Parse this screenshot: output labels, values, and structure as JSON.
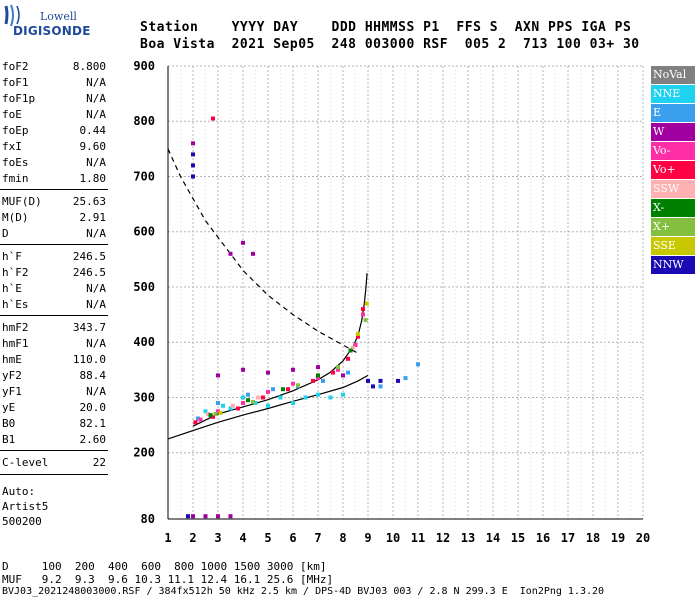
{
  "logo": {
    "brand": "Lowell",
    "name": "DIGISONDE"
  },
  "header": {
    "line1": "Station    YYYY DAY    DDD HHMMSS P1  FFS S  AXN PPS IGA PS",
    "line2": "Boa Vista  2021 Sep05  248 003000 RSF  005 2  713 100 03+ 30"
  },
  "params": [
    {
      "name": "foF2",
      "value": "8.800"
    },
    {
      "name": "foF1",
      "value": "N/A"
    },
    {
      "name": "foF1p",
      "value": "N/A"
    },
    {
      "name": "foE",
      "value": "N/A"
    },
    {
      "name": "foEp",
      "value": "0.44"
    },
    {
      "name": "fxI",
      "value": "9.60"
    },
    {
      "name": "foEs",
      "value": "N/A"
    },
    {
      "name": "fmin",
      "value": "1.80"
    },
    {
      "name": "MUF(D)",
      "value": "25.63"
    },
    {
      "name": "M(D)",
      "value": "2.91"
    },
    {
      "name": "D",
      "value": "N/A"
    },
    {
      "name": "h`F",
      "value": "246.5"
    },
    {
      "name": "h`F2",
      "value": "246.5"
    },
    {
      "name": "h`E",
      "value": "N/A"
    },
    {
      "name": "h`Es",
      "value": "N/A"
    },
    {
      "name": "hmF2",
      "value": "343.7"
    },
    {
      "name": "hmF1",
      "value": "N/A"
    },
    {
      "name": "hmE",
      "value": "110.0"
    },
    {
      "name": "yF2",
      "value": "88.4"
    },
    {
      "name": "yF1",
      "value": "N/A"
    },
    {
      "name": "yE",
      "value": "20.0"
    },
    {
      "name": "B0",
      "value": "82.1"
    },
    {
      "name": "B1",
      "value": "2.60"
    },
    {
      "name": "C-level",
      "value": "22"
    }
  ],
  "auto": {
    "line1": "Auto:",
    "line2": "Artist5",
    "line3": "500200"
  },
  "footer": {
    "d_row": "D     100  200  400  600  800 1000 1500 3000 [km]",
    "muf_row": "MUF   9.2  9.3  9.6 10.3 11.1 12.4 16.1 25.6 [MHz]",
    "file_row": "BVJ03_2021248003000.RSF / 384fx512h 50 kHz 2.5 km / DPS-4D BVJ03 003 / 2.8 N 299.3 E  Ion2Png 1.3.20"
  },
  "legend": [
    {
      "label": "NoVal",
      "color": "#808080"
    },
    {
      "label": "NNE",
      "color": "#1ed2f0"
    },
    {
      "label": "E",
      "color": "#3aa0ee"
    },
    {
      "label": "W",
      "color": "#a000a0"
    },
    {
      "label": "Vo-",
      "color": "#ff2ea6"
    },
    {
      "label": "Vo+",
      "color": "#ff0044"
    },
    {
      "label": "SSW",
      "color": "#ffb0b0"
    },
    {
      "label": "X-",
      "color": "#008000"
    },
    {
      "label": "X+",
      "color": "#84c040"
    },
    {
      "label": "SSE",
      "color": "#c8c800"
    },
    {
      "label": "NNW",
      "color": "#1a0ab4"
    }
  ],
  "chart_data": {
    "type": "scatter",
    "xlim": [
      1,
      20
    ],
    "ylim": [
      80,
      900
    ],
    "x_ticks": [
      1,
      2,
      3,
      4,
      5,
      6,
      7,
      8,
      9,
      10,
      11,
      12,
      13,
      14,
      15,
      16,
      17,
      18,
      19,
      20
    ],
    "y_ticks": [
      80,
      200,
      300,
      400,
      500,
      600,
      700,
      800,
      900
    ],
    "grid": true,
    "series": [
      {
        "name": "NNE",
        "color": "#1ed2f0",
        "points": [
          [
            2.5,
            275
          ],
          [
            3.2,
            285
          ],
          [
            4.0,
            300
          ],
          [
            5.0,
            285
          ],
          [
            6.0,
            290
          ],
          [
            6.5,
            300
          ],
          [
            7.0,
            305
          ],
          [
            7.5,
            300
          ],
          [
            8.0,
            305
          ],
          [
            5.5,
            300
          ],
          [
            4.5,
            290
          ],
          [
            3.5,
            280
          ]
        ]
      },
      {
        "name": "E",
        "color": "#3aa0ee",
        "points": [
          [
            2.2,
            262
          ],
          [
            3.0,
            290
          ],
          [
            4.2,
            305
          ],
          [
            5.2,
            315
          ],
          [
            6.2,
            320
          ],
          [
            7.2,
            330
          ],
          [
            8.2,
            345
          ],
          [
            9.5,
            320
          ],
          [
            10.5,
            335
          ],
          [
            11.0,
            360
          ]
        ]
      },
      {
        "name": "W",
        "color": "#a000a0",
        "points": [
          [
            2.0,
            760
          ],
          [
            2.0,
            700
          ],
          [
            3.5,
            560
          ],
          [
            4.0,
            580
          ],
          [
            4.4,
            560
          ],
          [
            3.0,
            340
          ],
          [
            4.0,
            350
          ],
          [
            5.0,
            345
          ],
          [
            6.0,
            350
          ],
          [
            7.0,
            355
          ],
          [
            8.0,
            340
          ],
          [
            2.0,
            85
          ],
          [
            2.5,
            85
          ],
          [
            3.0,
            85
          ],
          [
            3.5,
            85
          ]
        ]
      },
      {
        "name": "Vo-",
        "color": "#ff2ea6",
        "points": [
          [
            2.3,
            260
          ],
          [
            3.0,
            275
          ],
          [
            4.0,
            290
          ],
          [
            5.0,
            310
          ],
          [
            6.0,
            325
          ],
          [
            7.0,
            335
          ],
          [
            7.8,
            350
          ],
          [
            8.5,
            395
          ],
          [
            8.8,
            450
          ]
        ]
      },
      {
        "name": "Vo+",
        "color": "#ff0044",
        "points": [
          [
            2.1,
            255
          ],
          [
            2.8,
            265
          ],
          [
            3.8,
            280
          ],
          [
            4.8,
            300
          ],
          [
            5.8,
            315
          ],
          [
            6.8,
            330
          ],
          [
            7.6,
            345
          ],
          [
            8.2,
            370
          ],
          [
            8.6,
            410
          ],
          [
            8.8,
            460
          ],
          [
            2.8,
            805
          ]
        ]
      },
      {
        "name": "SSW",
        "color": "#ffb0b0",
        "points": [
          [
            2.6,
            270
          ],
          [
            3.6,
            285
          ],
          [
            4.6,
            300
          ],
          [
            8.4,
            390
          ]
        ]
      },
      {
        "name": "X-",
        "color": "#008000",
        "points": [
          [
            2.7,
            268
          ],
          [
            4.2,
            295
          ],
          [
            5.6,
            315
          ],
          [
            7.0,
            340
          ],
          [
            8.3,
            385
          ]
        ]
      },
      {
        "name": "X+",
        "color": "#84c040",
        "points": [
          [
            2.9,
            270
          ],
          [
            4.4,
            292
          ],
          [
            6.2,
            322
          ],
          [
            7.8,
            355
          ],
          [
            8.9,
            440
          ]
        ]
      },
      {
        "name": "SSE",
        "color": "#c8c800",
        "points": [
          [
            3.1,
            272
          ],
          [
            8.6,
            415
          ],
          [
            8.95,
            470
          ]
        ]
      },
      {
        "name": "NNW",
        "color": "#1a0ab4",
        "points": [
          [
            2.0,
            740
          ],
          [
            2.0,
            720
          ],
          [
            2.0,
            700
          ],
          [
            9.0,
            330
          ],
          [
            9.2,
            320
          ],
          [
            9.5,
            330
          ],
          [
            10.2,
            330
          ],
          [
            1.8,
            85
          ]
        ]
      }
    ],
    "profile_curve": [
      [
        2.0,
        248
      ],
      [
        3.0,
        270
      ],
      [
        4.0,
        283
      ],
      [
        5.0,
        296
      ],
      [
        6.0,
        312
      ],
      [
        7.0,
        332
      ],
      [
        7.5,
        346
      ],
      [
        8.0,
        366
      ],
      [
        8.4,
        392
      ],
      [
        8.6,
        412
      ],
      [
        8.75,
        440
      ],
      [
        8.85,
        470
      ],
      [
        8.92,
        500
      ],
      [
        8.96,
        525
      ]
    ],
    "lower_curve": [
      [
        1.0,
        225
      ],
      [
        2.0,
        240
      ],
      [
        3.0,
        255
      ],
      [
        4.0,
        268
      ],
      [
        5.0,
        280
      ],
      [
        6.0,
        293
      ],
      [
        7.0,
        305
      ],
      [
        8.0,
        318
      ],
      [
        8.6,
        330
      ],
      [
        9.0,
        340
      ]
    ],
    "dashed_curve": [
      [
        1.0,
        750
      ],
      [
        1.5,
        700
      ],
      [
        2.0,
        660
      ],
      [
        2.5,
        620
      ],
      [
        3.0,
        590
      ],
      [
        3.5,
        560
      ],
      [
        4.0,
        530
      ],
      [
        5.0,
        485
      ],
      [
        6.0,
        450
      ],
      [
        7.0,
        420
      ],
      [
        8.0,
        395
      ],
      [
        8.6,
        380
      ]
    ]
  }
}
